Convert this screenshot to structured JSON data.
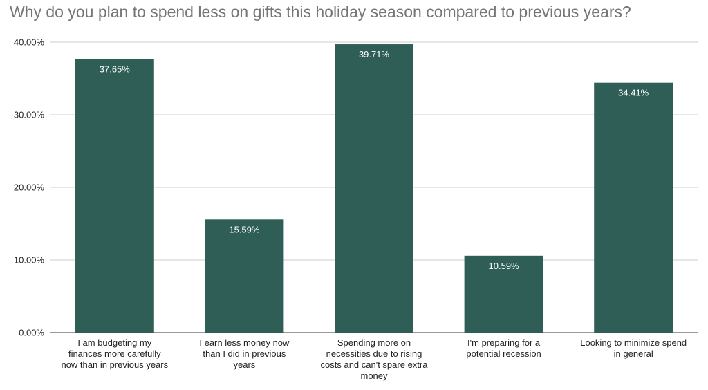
{
  "chart_data": {
    "type": "bar",
    "title": "Why do you plan to spend less on gifts this holiday season compared to previous years?",
    "categories": [
      "I am budgeting my finances more carefully now than in previous years",
      "I earn less money now than I did in previous years",
      "Spending more on necessities due to rising costs and can't spare extra money",
      "I'm preparing for a potential recession",
      "Looking to minimize spend in general"
    ],
    "category_label_lines": [
      [
        "I am budgeting my",
        "finances more carefully",
        "now than in previous years"
      ],
      [
        "I earn less money now",
        "than I did in previous",
        "years"
      ],
      [
        "Spending more on",
        "necessities due to rising",
        "costs and can't spare extra",
        "money"
      ],
      [
        "I'm preparing for a",
        "potential recession"
      ],
      [
        "Looking to minimize spend",
        "in general"
      ]
    ],
    "values": [
      37.65,
      15.59,
      39.71,
      10.59,
      34.41
    ],
    "data_labels": [
      "37.65%",
      "15.59%",
      "39.71%",
      "10.59%",
      "34.41%"
    ],
    "y_ticks": [
      0,
      10,
      20,
      30,
      40
    ],
    "y_tick_labels": [
      "0.00%",
      "10.00%",
      "20.00%",
      "30.00%",
      "40.00%"
    ],
    "ylim": [
      0,
      40
    ],
    "xlabel": "",
    "ylabel": "",
    "grid": true,
    "legend": "none",
    "bar_color": "#2e5e55",
    "gridline_color": "#cccccc",
    "axis_color": "#333333"
  }
}
